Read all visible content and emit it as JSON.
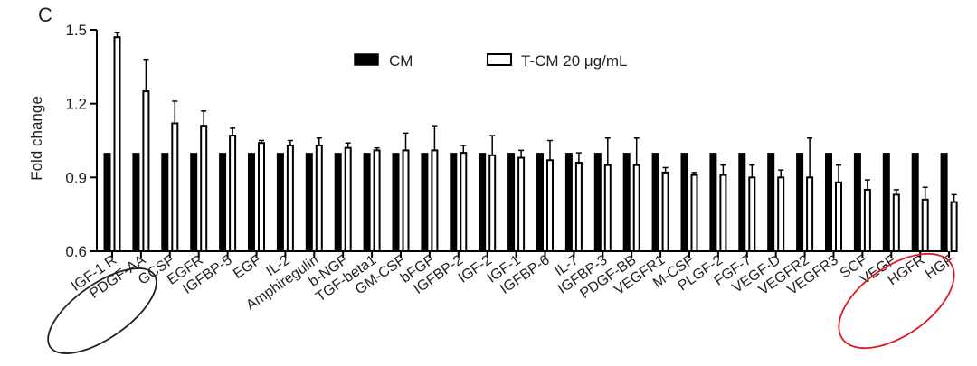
{
  "panel_label": "C",
  "colors": {
    "cm_fill": "#000000",
    "tcm_fill": "#ffffff",
    "highlight_left": "#231f20",
    "highlight_right": "#d81e25"
  },
  "chart_data": {
    "type": "bar",
    "title": "",
    "xlabel": "",
    "ylabel": "Fold change",
    "ylim": [
      0.6,
      1.5
    ],
    "yticks": [
      "0.6",
      "0.9",
      "1.2",
      "1.5"
    ],
    "grid": false,
    "legend_position": "top-center",
    "categories": [
      "IGF-1 R",
      "PDGF-AA",
      "GCSF",
      "EGFR",
      "IGFBP-5",
      "EGF",
      "IL-2",
      "Amphiregulin",
      "b-NGF",
      "TGF-beta1",
      "GM-CSF",
      "bFGF",
      "IGFBP-2",
      "IGF-2",
      "IGF-1",
      "IGFBP-6",
      "IL-7",
      "IGFBP-3",
      "PDGF-BB",
      "VEGFR1",
      "M-CSF",
      "PLGF-2",
      "FGF-7",
      "VEGF-D",
      "VEGFR2",
      "VEGFR3",
      "SCF",
      "VEGF",
      "HGFR",
      "HGF"
    ],
    "series": [
      {
        "name": "CM",
        "values": [
          1,
          1,
          1,
          1,
          1,
          1,
          1,
          1,
          1,
          1,
          1,
          1,
          1,
          1,
          1,
          1,
          1,
          1,
          1,
          1,
          1,
          1,
          1,
          1,
          1,
          1,
          1,
          1,
          1,
          1
        ]
      },
      {
        "name": "T-CM 20 μg/mL",
        "values": [
          1.47,
          1.25,
          1.12,
          1.11,
          1.07,
          1.04,
          1.03,
          1.03,
          1.02,
          1.01,
          1.01,
          1.01,
          1.0,
          0.99,
          0.98,
          0.97,
          0.96,
          0.95,
          0.95,
          0.92,
          0.91,
          0.91,
          0.9,
          0.9,
          0.9,
          0.88,
          0.85,
          0.83,
          0.81,
          0.8
        ],
        "errors": [
          0.02,
          0.13,
          0.09,
          0.06,
          0.03,
          0.01,
          0.02,
          0.03,
          0.02,
          0.01,
          0.07,
          0.1,
          0.03,
          0.08,
          0.03,
          0.08,
          0.04,
          0.11,
          0.11,
          0.02,
          0.01,
          0.04,
          0.05,
          0.03,
          0.16,
          0.07,
          0.04,
          0.02,
          0.05,
          0.03
        ]
      }
    ],
    "annotations": [
      {
        "type": "ellipse",
        "label": "highlight-left",
        "covers": [
          "IGF-1 R",
          "PDGF-AA"
        ],
        "color": "#231f20"
      },
      {
        "type": "ellipse",
        "label": "highlight-right",
        "covers": [
          "HGFR",
          "HGF"
        ],
        "color": "#d81e25"
      }
    ]
  }
}
